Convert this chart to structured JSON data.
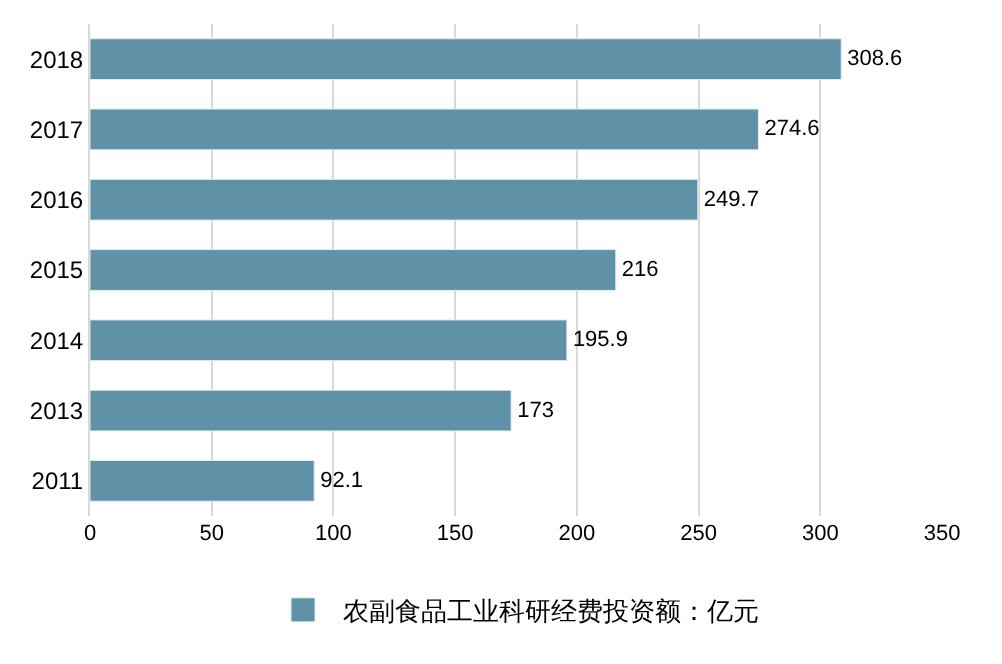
{
  "chart_data": {
    "type": "bar",
    "orientation": "horizontal",
    "categories": [
      "2018",
      "2017",
      "2016",
      "2015",
      "2014",
      "2013",
      "2011"
    ],
    "series": [
      {
        "name": "农副食品工业科研经费投资额：亿元",
        "color": "#5f91a7",
        "values": [
          308.6,
          274.6,
          249.7,
          216,
          195.9,
          173,
          92.1
        ]
      }
    ],
    "xlim": [
      0,
      350
    ],
    "xticks": [
      0,
      50,
      100,
      150,
      200,
      250,
      300,
      350
    ],
    "grid": "x",
    "legend": "bottom",
    "data_labels": true
  }
}
